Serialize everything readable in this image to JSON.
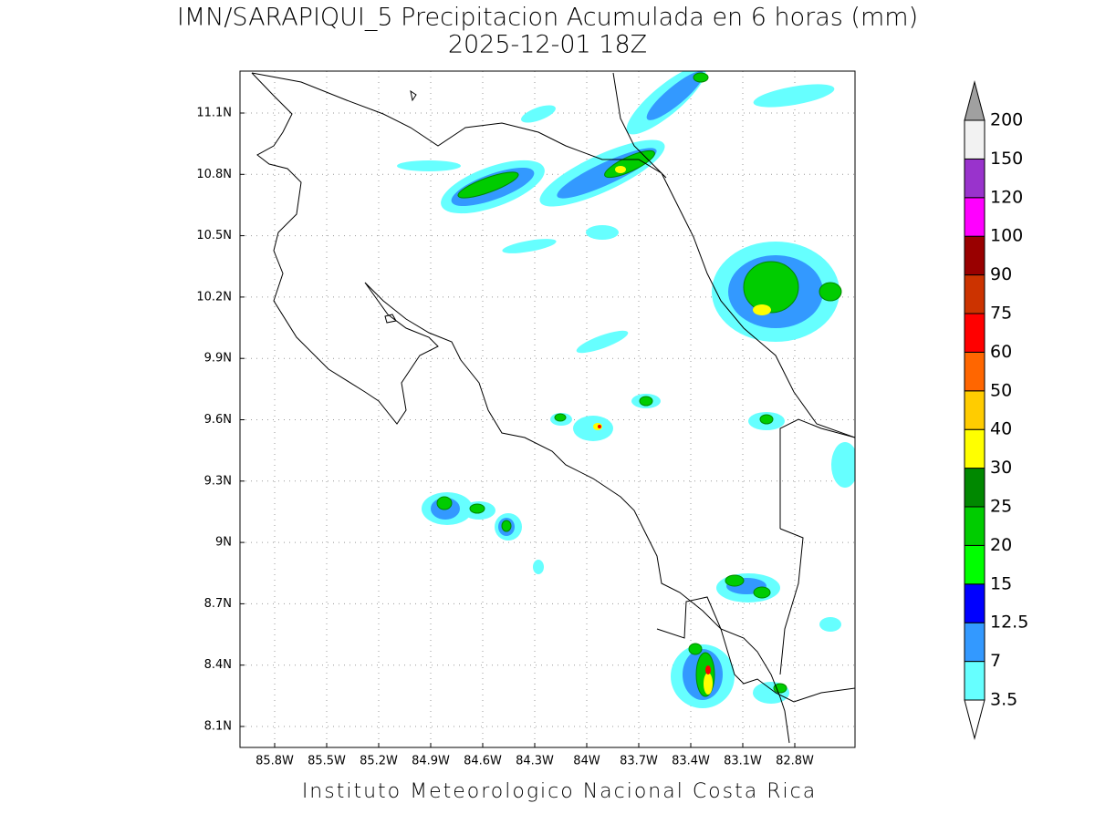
{
  "title": "IMN/SARAPIQUI_5 Precipitacion Acumulada en 6 horas (mm)",
  "subtitle": "2025-12-01 18Z",
  "footer": "Instituto Meteorologico Nacional Costa Rica",
  "lon_labels": [
    "85.8W",
    "85.5W",
    "85.2W",
    "84.9W",
    "84.6W",
    "84.3W",
    "84W",
    "83.7W",
    "83.4W",
    "83.1W",
    "82.8W"
  ],
  "lat_labels": [
    "11.1N",
    "10.8N",
    "10.5N",
    "10.2N",
    "9.9N",
    "9.6N",
    "9.3N",
    "9N",
    "8.7N",
    "8.4N",
    "8.1N"
  ],
  "legend": {
    "levels": [
      3.5,
      7,
      12.5,
      15,
      20,
      25,
      30,
      40,
      50,
      60,
      75,
      90,
      100,
      120,
      150,
      200
    ],
    "colors": [
      "#66ffff",
      "#3399ff",
      "#0000ff",
      "#00ff00",
      "#00cc00",
      "#008800",
      "#ffff00",
      "#ffcc00",
      "#ff6600",
      "#ff0000",
      "#cc3300",
      "#990000",
      "#ff00ff",
      "#9933cc",
      "#f2f2f2"
    ],
    "below_color": "#ffffff",
    "above_color": "#a0a0a0"
  }
}
